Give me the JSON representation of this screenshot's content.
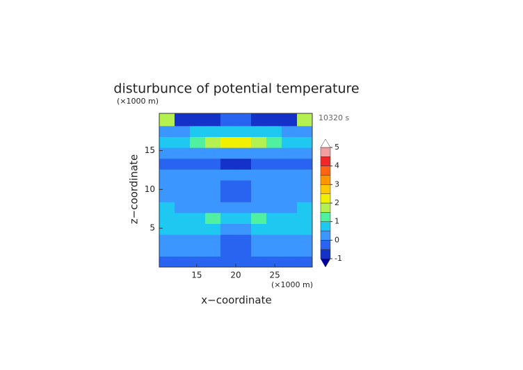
{
  "chart_data": {
    "type": "contour",
    "title": "disturbunce of potential temperature",
    "y_unit": "(×1000 m)",
    "x_unit": "(×1000 m)",
    "time_label": "10320 s",
    "xlabel": "x−coordinate",
    "ylabel": "z−coordinate",
    "xlim": [
      10.2,
      29.8
    ],
    "ylim": [
      0,
      19.8
    ],
    "xticks": [
      15,
      20,
      25
    ],
    "yticks": [
      5,
      10,
      15
    ],
    "x_edges": [
      10.2,
      12.16,
      14.12,
      16.08,
      18.04,
      20,
      21.96,
      23.92,
      25.88,
      27.84,
      29.8
    ],
    "z_edges": [
      0,
      1.4,
      2.8,
      4.2,
      5.6,
      7,
      8.4,
      9.8,
      11.2,
      12.6,
      14,
      15.4,
      16.8,
      18.2,
      19.8
    ],
    "values": [
      [
        -0.2,
        -0.2,
        -0.3,
        -0.3,
        -0.4,
        -0.4,
        -0.3,
        -0.3,
        -0.2,
        -0.2
      ],
      [
        0.3,
        0.3,
        0.2,
        0,
        -0.2,
        -0.2,
        0,
        0.2,
        0.3,
        0.3
      ],
      [
        0.2,
        0.1,
        0.1,
        0.2,
        -0.2,
        -0.2,
        0.2,
        0.1,
        0.1,
        0.2
      ],
      [
        0.8,
        0.9,
        0.8,
        0.7,
        0.3,
        0.3,
        0.7,
        0.8,
        0.9,
        0.8
      ],
      [
        0.7,
        0.8,
        0.9,
        1.1,
        0.8,
        0.8,
        1.1,
        0.9,
        0.8,
        0.7
      ],
      [
        0.6,
        0.4,
        0.3,
        0.3,
        0.2,
        0.2,
        0.3,
        0.3,
        0.4,
        0.6
      ],
      [
        0.2,
        0.2,
        0.3,
        0.2,
        -0.1,
        -0.1,
        0.2,
        0.3,
        0.2,
        0.2
      ],
      [
        0.3,
        0.2,
        0.2,
        0.2,
        -0.1,
        -0.1,
        0.2,
        0.2,
        0.2,
        0.3
      ],
      [
        0.2,
        0.3,
        0.2,
        0.2,
        0.1,
        0.1,
        0.2,
        0.2,
        0.3,
        0.2
      ],
      [
        -0.2,
        -0.3,
        -0.3,
        -0.4,
        -0.7,
        -0.7,
        -0.4,
        -0.3,
        -0.3,
        -0.2
      ],
      [
        0.3,
        0.4,
        0.3,
        0.1,
        0.2,
        0.2,
        0.1,
        0.3,
        0.4,
        0.3
      ],
      [
        0.8,
        0.9,
        1.3,
        1.8,
        2.4,
        2.4,
        1.8,
        1.3,
        0.9,
        0.8
      ],
      [
        0.2,
        0.4,
        0.6,
        0.8,
        0.9,
        0.9,
        0.8,
        0.6,
        0.4,
        0.2
      ],
      [
        1.6,
        -0.6,
        -0.8,
        -0.8,
        -0.3,
        -0.3,
        -0.8,
        -0.8,
        -0.6,
        1.6
      ]
    ],
    "levels": [
      -1,
      -0.5,
      0,
      0.5,
      1,
      1.5,
      2,
      2.5,
      3,
      3.5,
      4,
      4.5,
      5
    ],
    "colors": [
      "#1432c8",
      "#2864f0",
      "#3c96ff",
      "#1ec8f0",
      "#50f0a0",
      "#b4f050",
      "#f0f000",
      "#ffc800",
      "#ff9600",
      "#ff6414",
      "#f02828",
      "#f0a0a0"
    ],
    "under_color": "#0000a0",
    "over_color": "#ffffff",
    "cbar_ticks": [
      -1,
      0,
      1,
      2,
      3,
      4,
      5
    ]
  }
}
